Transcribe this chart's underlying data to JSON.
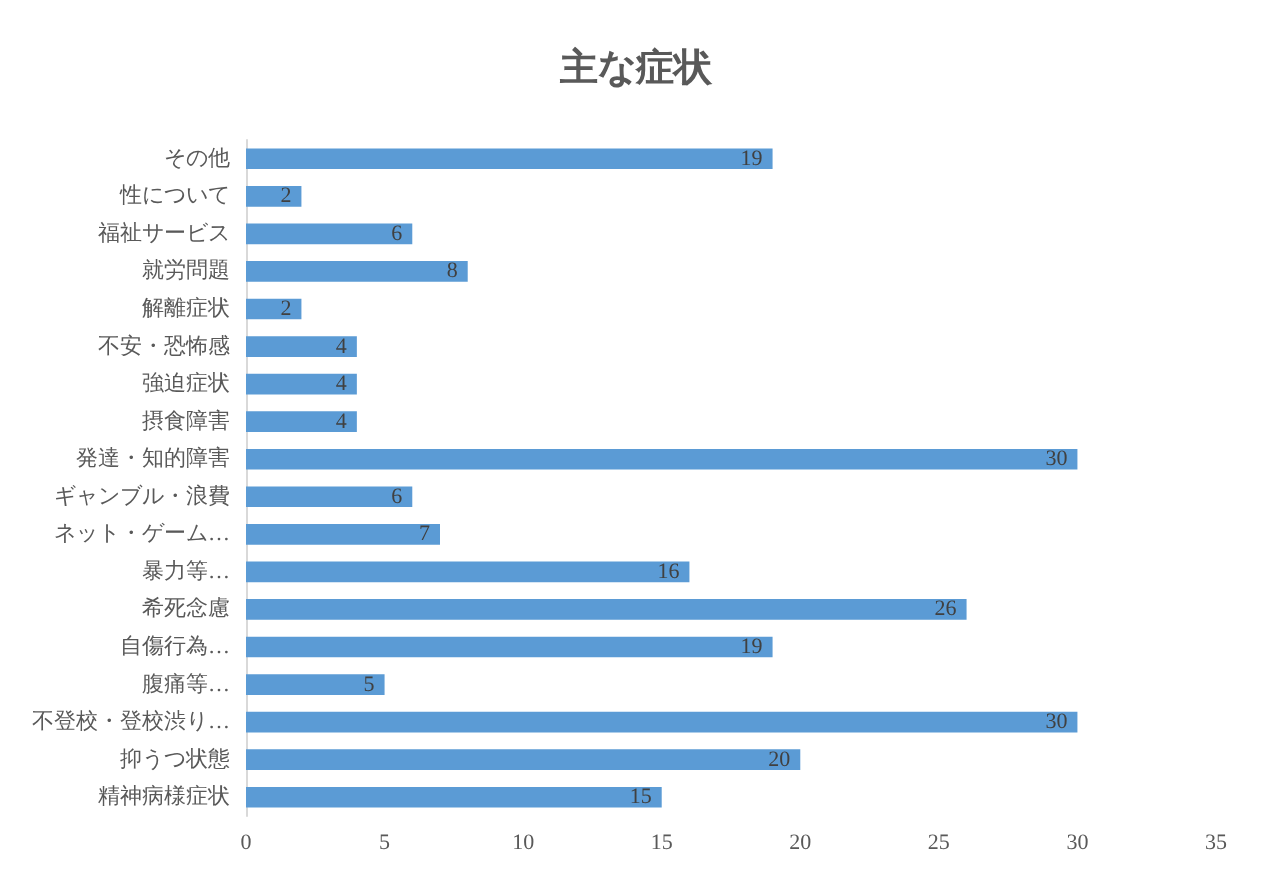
{
  "chart_data": {
    "type": "bar",
    "orientation": "horizontal",
    "title": "主な症状",
    "categories": [
      "その他",
      "性について",
      "福祉サービス",
      "就労問題",
      "解離症状",
      "不安・恐怖感",
      "強迫症状",
      "摂食障害",
      "発達・知的障害",
      "ギャンブル・浪費",
      "ネット・ゲーム…",
      "暴力等…",
      "希死念慮",
      "自傷行為…",
      "腹痛等…",
      "不登校・登校渋り…",
      "抑うつ状態",
      "精神病様症状"
    ],
    "values": [
      19,
      2,
      6,
      8,
      2,
      4,
      4,
      4,
      30,
      6,
      7,
      16,
      26,
      19,
      5,
      30,
      20,
      15
    ],
    "color": "#5b9bd5",
    "data_labels": true,
    "xlim": [
      0,
      35
    ],
    "xticks": [
      0,
      5,
      10,
      15,
      20,
      25,
      30,
      35
    ],
    "grid": false
  }
}
